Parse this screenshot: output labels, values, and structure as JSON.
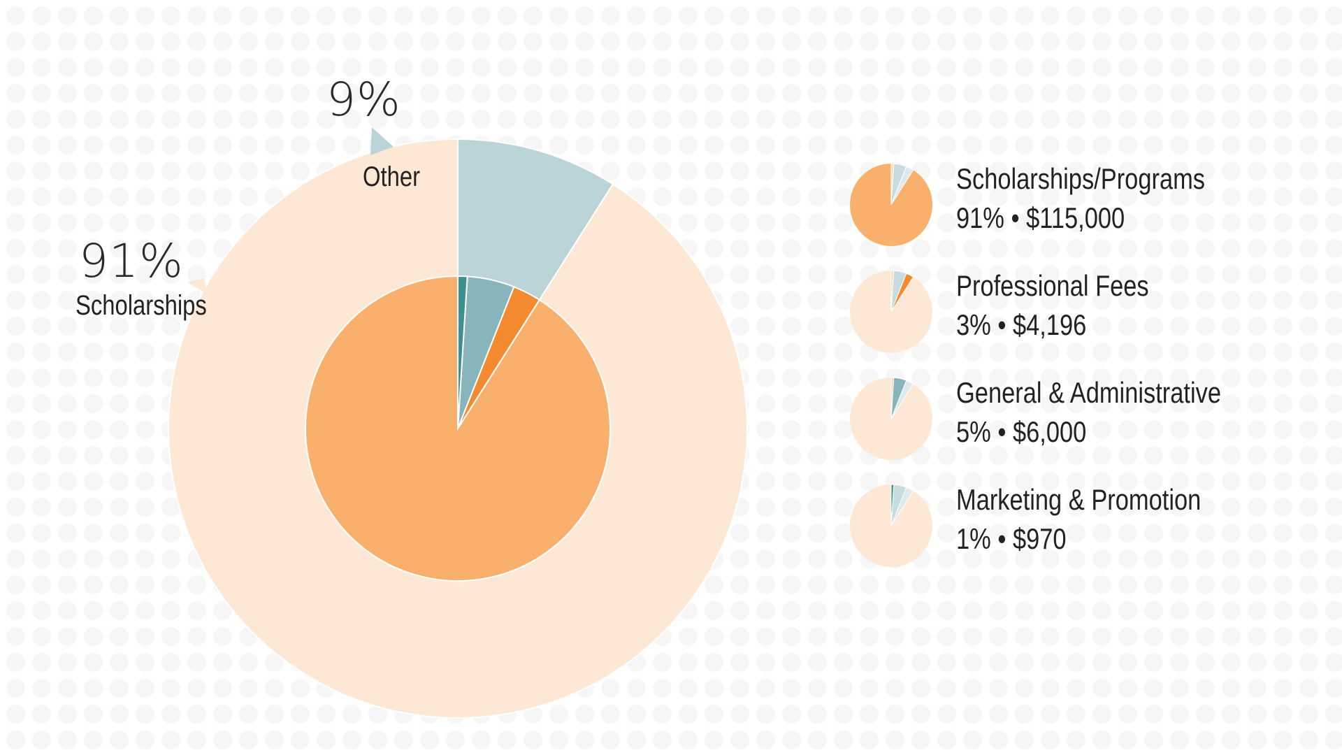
{
  "chart_data": {
    "type": "pie",
    "variant": "nested-donut-with-legend-pies",
    "outer_ring": [
      {
        "name": "Scholarships",
        "percent": 91,
        "color": "#fde8d6"
      },
      {
        "name": "Other",
        "percent": 9,
        "color": "#bad4d8"
      }
    ],
    "inner_pie": [
      {
        "name": "Scholarships/Programs",
        "percent": 91,
        "color": "#f8b06c"
      },
      {
        "name": "Professional Fees",
        "percent": 3,
        "color": "#f48a30"
      },
      {
        "name": "General & Administrative",
        "percent": 5,
        "color": "#88b5bb"
      },
      {
        "name": "Marketing & Promotion",
        "percent": 1,
        "color": "#3d8f92"
      }
    ],
    "callouts": {
      "scholarships": {
        "percent": "91%",
        "label": "Scholarships"
      },
      "other": {
        "percent": "9%",
        "label": "Other"
      }
    },
    "legend": [
      {
        "name": "Scholarships/Programs",
        "value": "91% • $115,000",
        "amount": 115000,
        "percent": 91,
        "highlight_color": "#f8b06c"
      },
      {
        "name": "Professional Fees",
        "value": "3% • $4,196",
        "amount": 4196,
        "percent": 3,
        "highlight_color": "#f48a30"
      },
      {
        "name": "General & Administrative",
        "value": "5% • $6,000",
        "amount": 6000,
        "percent": 5,
        "highlight_color": "#88b5bb"
      },
      {
        "name": "Marketing & Promotion",
        "value": "1% • $970",
        "amount": 970,
        "percent": 1,
        "highlight_color": "#3d8f92"
      }
    ],
    "legend_base_color": "#fde8d6",
    "legend_muted_colors": [
      "#fcd9b8",
      "#fbc9a0",
      "#dfe8ea",
      "#c8dcdf"
    ]
  }
}
